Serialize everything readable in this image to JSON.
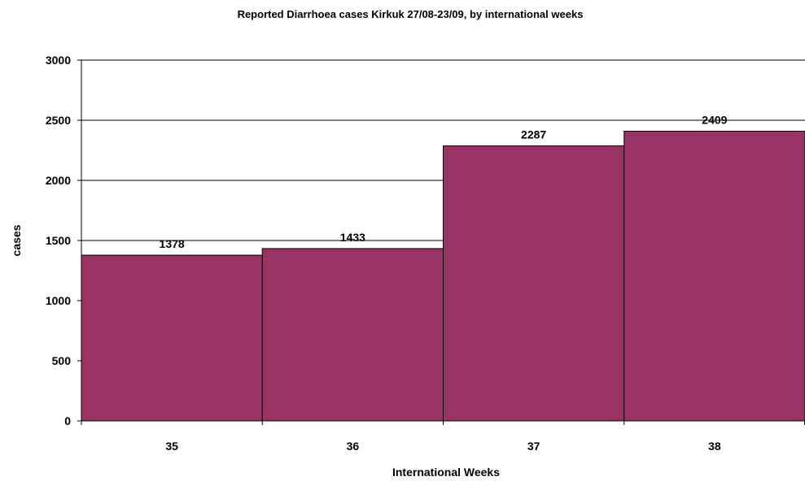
{
  "chart_data": {
    "type": "bar",
    "title": "Reported Diarrhoea cases Kirkuk 27/08-23/09, by international weeks",
    "xlabel": "International Weeks",
    "ylabel": "cases",
    "categories": [
      "35",
      "36",
      "37",
      "38"
    ],
    "values": [
      1378,
      1433,
      2287,
      2409
    ],
    "data_labels": [
      "1378",
      "1433",
      "2287",
      "2409"
    ],
    "ylim": [
      0,
      3000
    ],
    "yticks": [
      "0",
      "500",
      "1000",
      "1500",
      "2000",
      "2500",
      "3000"
    ],
    "ytick_values": [
      0,
      500,
      1000,
      1500,
      2000,
      2500,
      3000
    ],
    "grid": true,
    "legend": "none",
    "bar_color": "#993366"
  }
}
